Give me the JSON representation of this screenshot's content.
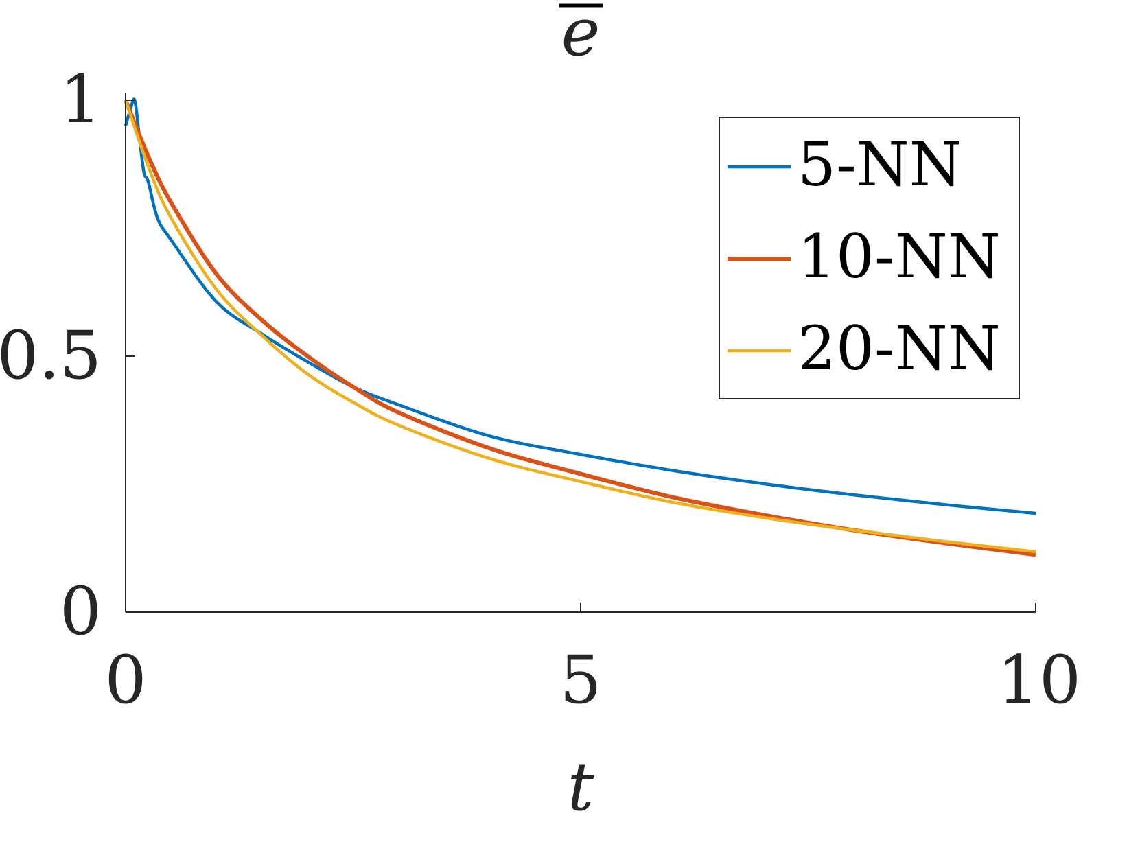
{
  "chart_data": {
    "type": "line",
    "title": "ē",
    "xlabel": "t",
    "ylabel": "",
    "xlim": [
      0,
      10
    ],
    "ylim": [
      0,
      1
    ],
    "xticks": [
      0,
      5,
      10
    ],
    "xtick_labels": [
      "0",
      "5",
      "10"
    ],
    "yticks": [
      0,
      0.5,
      1
    ],
    "ytick_labels": [
      "0",
      "0.5",
      "1"
    ],
    "grid": false,
    "legend_position": "top-right",
    "series": [
      {
        "name": "5-NN",
        "color": "#0072BD",
        "x": [
          0,
          0.05,
          0.1,
          0.15,
          0.2,
          0.25,
          0.35,
          0.5,
          1,
          1.5,
          2,
          2.5,
          3,
          4,
          5,
          6,
          7,
          8,
          9,
          10
        ],
        "y": [
          0.95,
          0.98,
          1.0,
          0.93,
          0.86,
          0.84,
          0.77,
          0.727,
          0.606,
          0.543,
          0.489,
          0.44,
          0.405,
          0.344,
          0.308,
          0.277,
          0.251,
          0.229,
          0.21,
          0.193
        ]
      },
      {
        "name": "10-NN",
        "color": "#D95319",
        "x": [
          0,
          0.25,
          0.5,
          1,
          1.5,
          2,
          2.5,
          3,
          4,
          5,
          6,
          7,
          8,
          9,
          10
        ],
        "y": [
          1.0,
          0.89,
          0.8,
          0.66,
          0.57,
          0.5,
          0.44,
          0.39,
          0.32,
          0.27,
          0.225,
          0.19,
          0.16,
          0.135,
          0.112
        ]
      },
      {
        "name": "20-NN",
        "color": "#EDB120",
        "x": [
          0,
          0.25,
          0.5,
          1,
          1.5,
          2,
          2.5,
          3,
          4,
          5,
          6,
          7,
          8,
          9,
          10
        ],
        "y": [
          1.0,
          0.87,
          0.77,
          0.63,
          0.54,
          0.465,
          0.41,
          0.365,
          0.3,
          0.255,
          0.215,
          0.185,
          0.16,
          0.138,
          0.118
        ]
      }
    ]
  }
}
